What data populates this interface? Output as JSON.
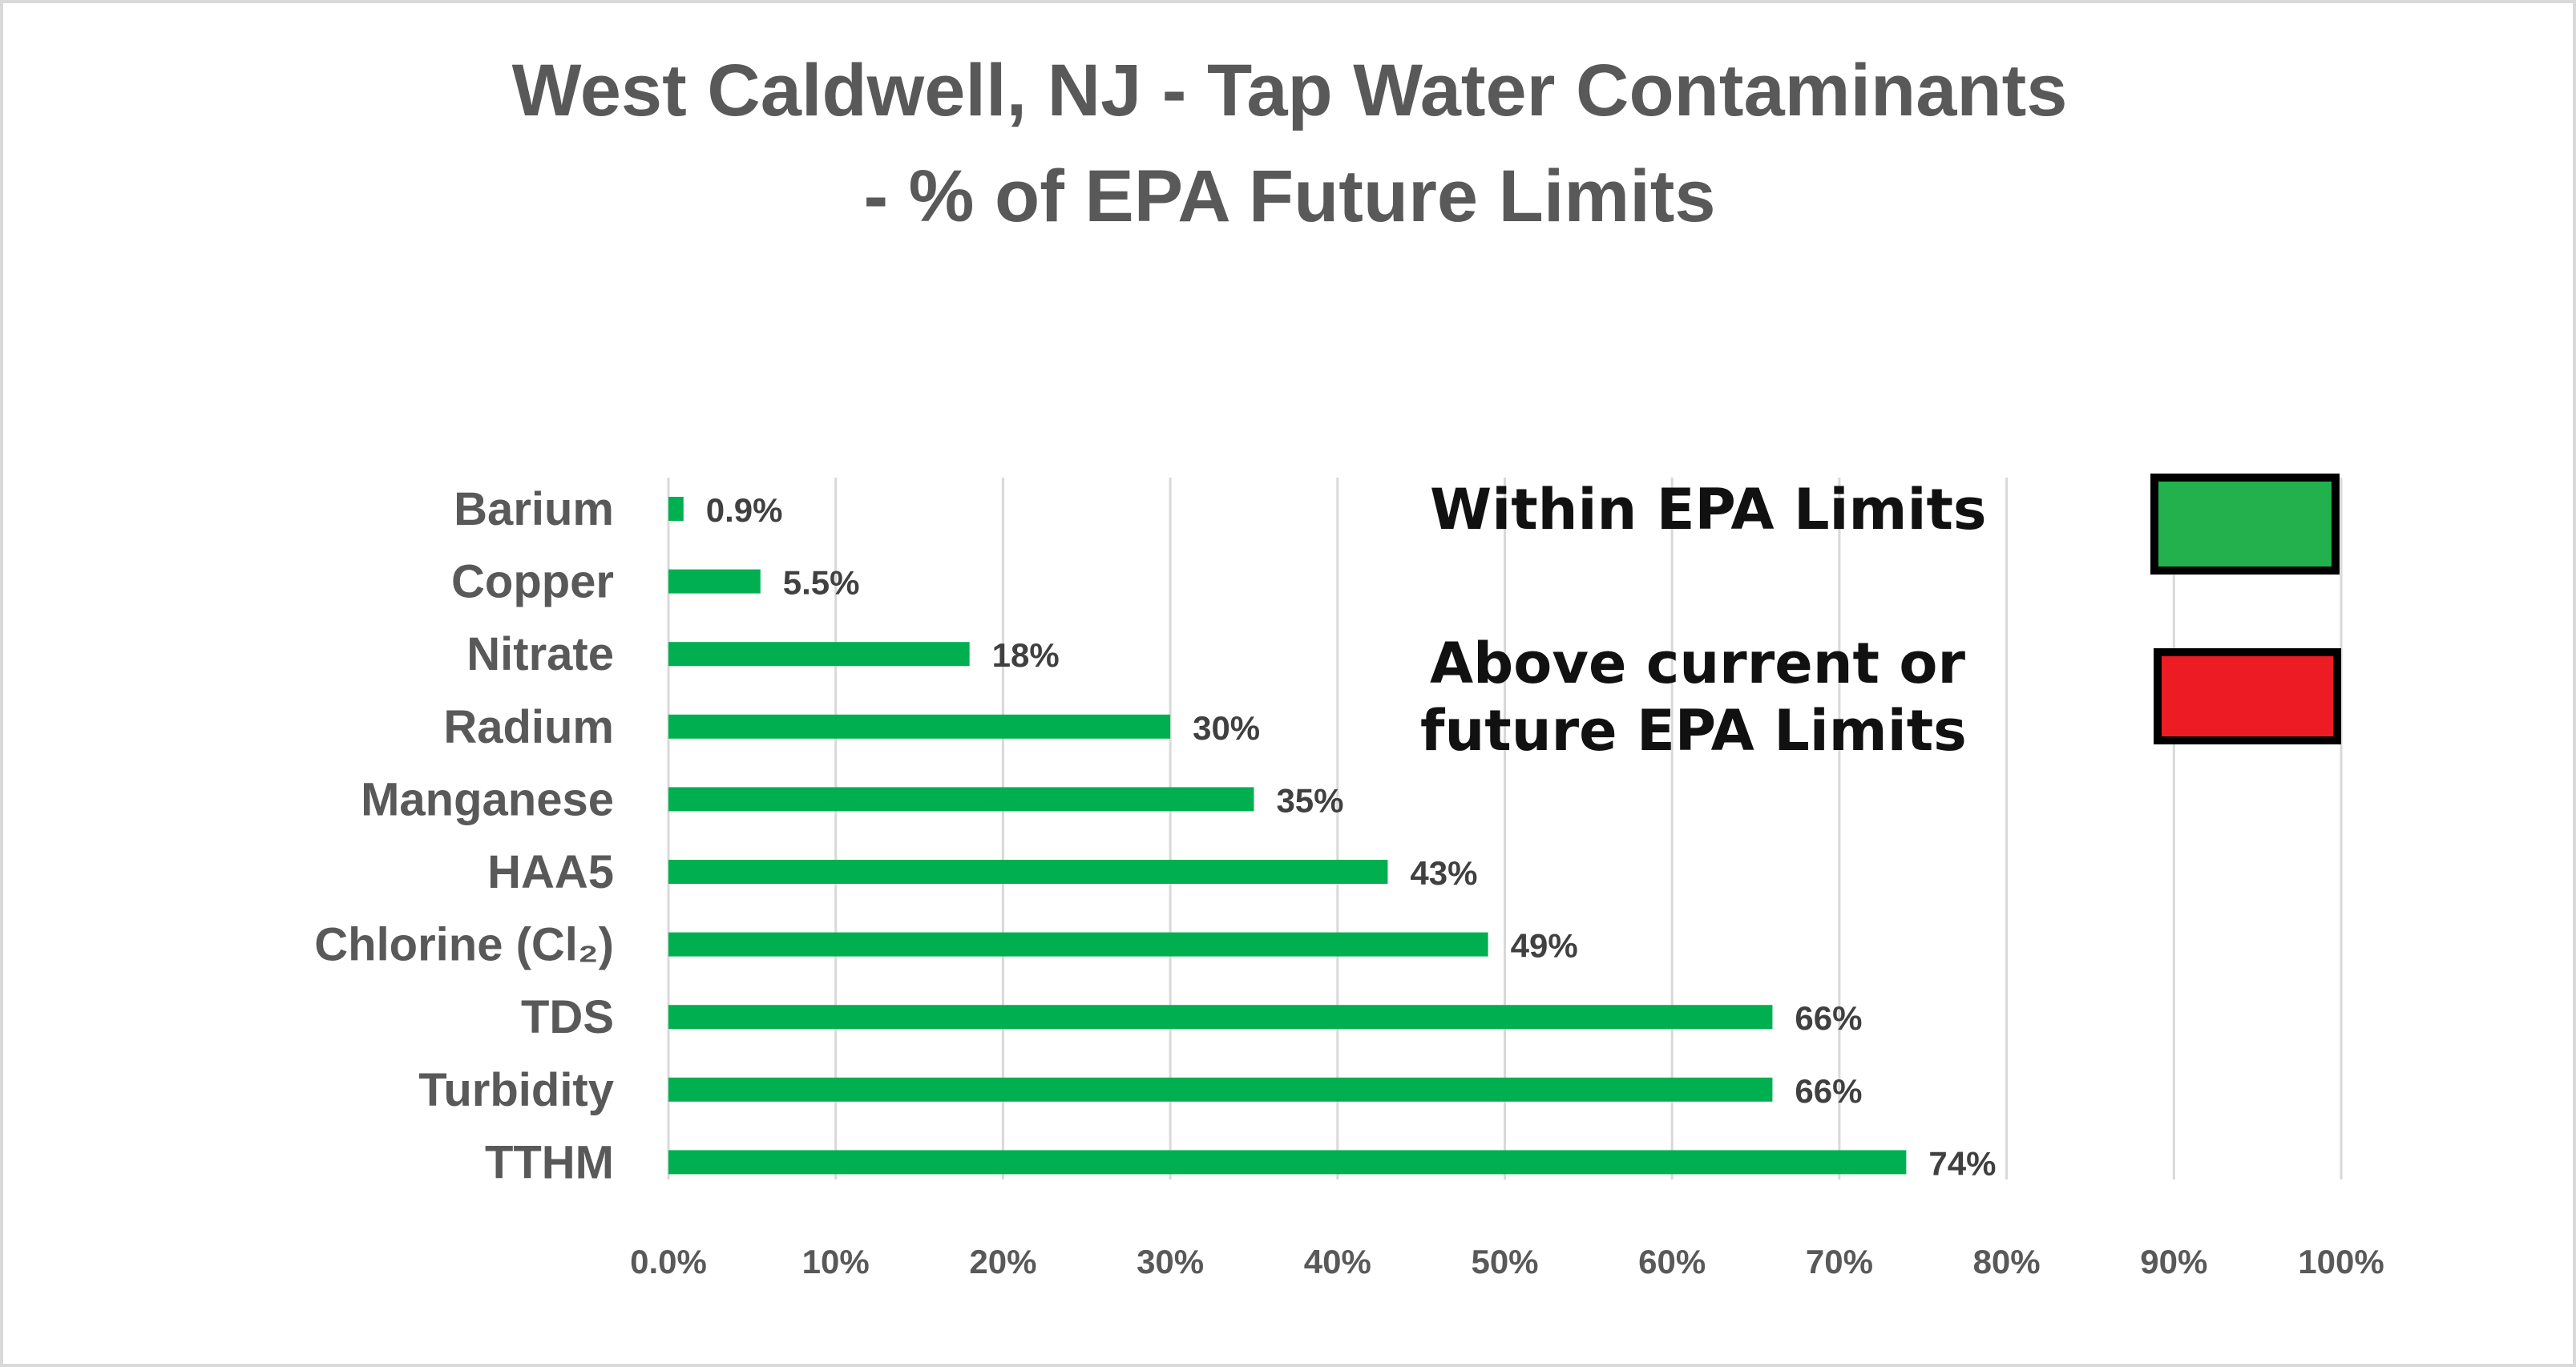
{
  "chart_data": {
    "type": "bar",
    "orientation": "horizontal",
    "title": [
      "West Caldwell, NJ - Tap Water Contaminants",
      "- % of EPA Future Limits"
    ],
    "categories": [
      "Barium",
      "Copper",
      "Nitrate",
      "Radium",
      "Manganese",
      "HAA5",
      "Chlorine (Cl₂)",
      "TDS",
      "Turbidity",
      "TTHM"
    ],
    "values": [
      0.9,
      5.5,
      18,
      30,
      35,
      43,
      49,
      66,
      66,
      74
    ],
    "data_labels": [
      "0.9%",
      "5.5%",
      "18%",
      "30%",
      "35%",
      "43%",
      "49%",
      "66%",
      "66%",
      "74%"
    ],
    "bar_color": "#00b050",
    "xlim": [
      0,
      100
    ],
    "x_ticks": [
      "0.0%",
      "10%",
      "20%",
      "30%",
      "40%",
      "50%",
      "60%",
      "70%",
      "80%",
      "90%",
      "100%"
    ],
    "grid": "vertical",
    "xlabel": "",
    "ylabel": "",
    "legend": {
      "placement": "top-right",
      "items": [
        {
          "label": "Within EPA Limits",
          "color": "#22b14c"
        },
        {
          "label": [
            "Above current or",
            "future EPA Limits"
          ],
          "color": "#ed1c24"
        }
      ]
    }
  }
}
